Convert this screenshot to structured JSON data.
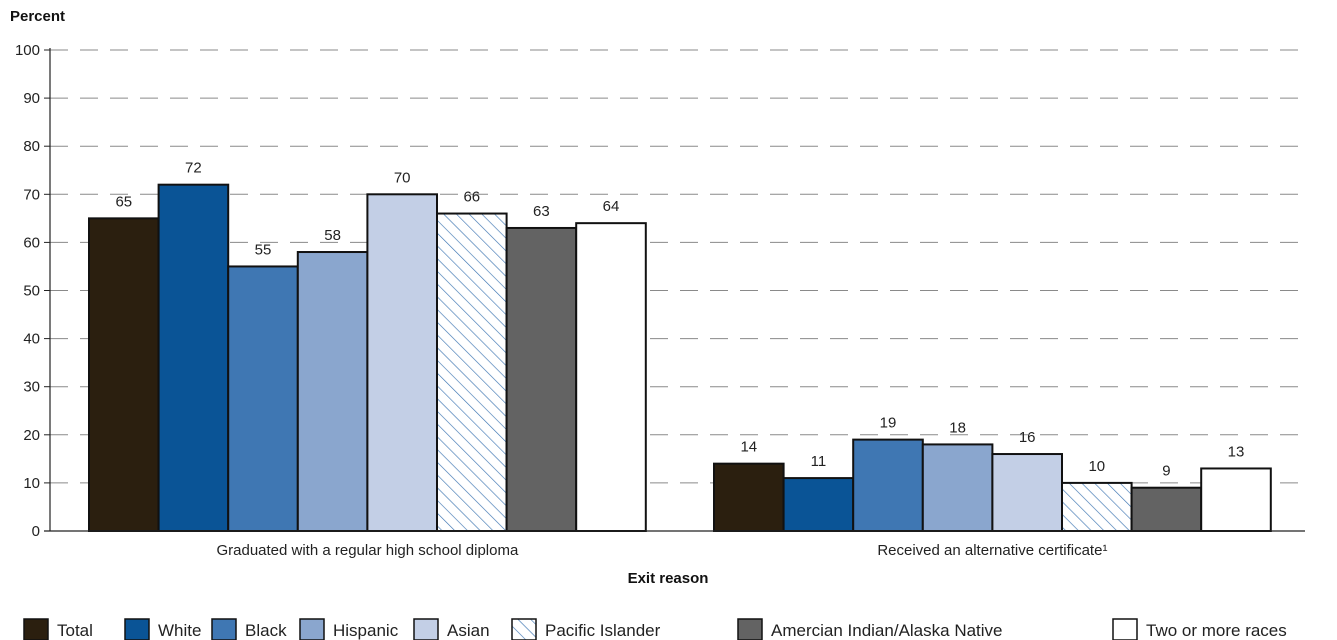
{
  "chart_data": {
    "type": "bar",
    "ylabel": "Percent",
    "xlabel": "Exit reason",
    "ylim": [
      0,
      100
    ],
    "yticks": [
      0,
      10,
      20,
      30,
      40,
      50,
      60,
      70,
      80,
      90,
      100
    ],
    "grid": "dashed horizontal",
    "legend_position": "bottom",
    "categories": [
      "Graduated with a regular high school diploma",
      "Received an alternative certificate¹"
    ],
    "series": [
      {
        "name": "Total",
        "values": [
          65,
          14
        ],
        "color": "#2b1f0f",
        "pattern": "solid"
      },
      {
        "name": "White",
        "values": [
          72,
          11
        ],
        "color": "#0a5496",
        "pattern": "solid"
      },
      {
        "name": "Black",
        "values": [
          55,
          19
        ],
        "color": "#3f77b3",
        "pattern": "solid"
      },
      {
        "name": "Hispanic",
        "values": [
          58,
          18
        ],
        "color": "#8aa6ce",
        "pattern": "solid"
      },
      {
        "name": "Asian",
        "values": [
          70,
          16
        ],
        "color": "#c3cfe6",
        "pattern": "solid"
      },
      {
        "name": "Pacific Islander",
        "values": [
          66,
          10
        ],
        "color": "#ffffff",
        "pattern": "hatch",
        "hatch_color": "#3f77b3"
      },
      {
        "name": "Amercian Indian/Alaska Native",
        "values": [
          63,
          9
        ],
        "color": "#636363",
        "pattern": "solid"
      },
      {
        "name": "Two or more races",
        "values": [
          64,
          13
        ],
        "color": "#ffffff",
        "pattern": "solid"
      }
    ]
  }
}
